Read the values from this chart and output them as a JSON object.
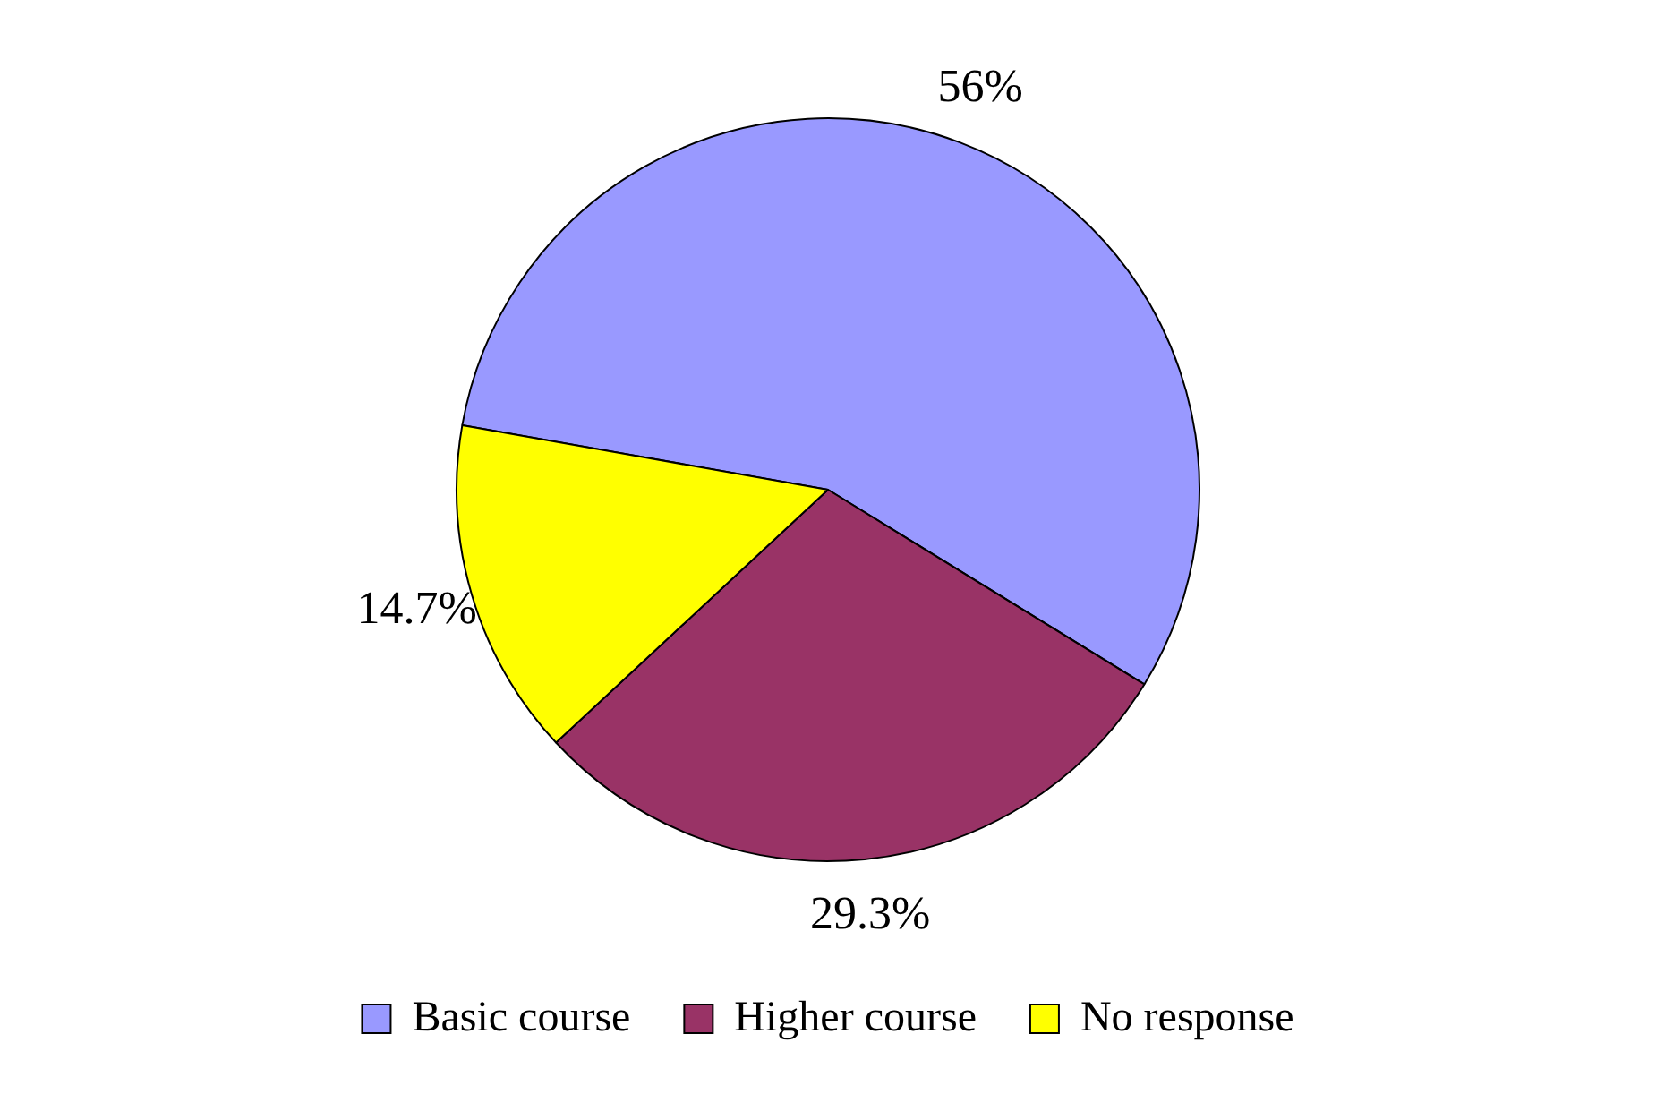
{
  "chart_data": {
    "type": "pie",
    "categories": [
      "Basic course",
      "Higher course",
      "No response"
    ],
    "values": [
      56,
      29.3,
      14.7
    ],
    "colors": [
      "#9999ff",
      "#993366",
      "#ffff00"
    ],
    "value_labels": [
      "56%",
      "29.3%",
      "14.7%"
    ],
    "legend": "bottom"
  }
}
